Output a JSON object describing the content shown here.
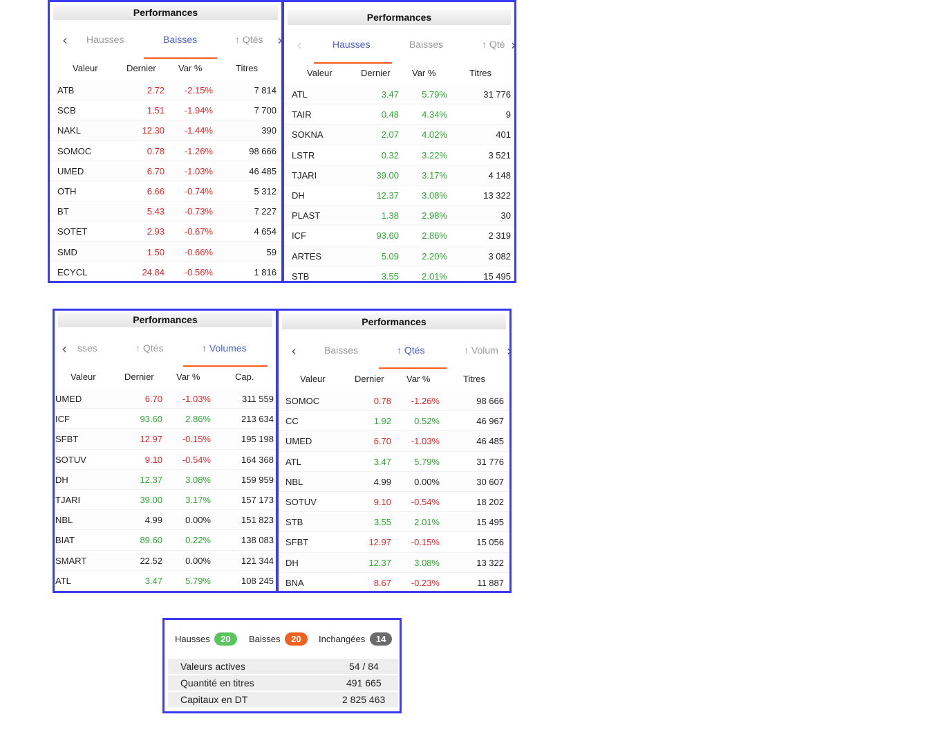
{
  "colors": {
    "frame": "#3b3bf0",
    "up": "#2ea831",
    "down": "#e02a2a",
    "tab_active": "#4a5fc8",
    "tab_underline": "#ff5a1f",
    "badge_up": "#5cc45e",
    "badge_down": "#f06222",
    "badge_flat": "#6b6b6b"
  },
  "panels": [
    {
      "title": "Performances",
      "tabs": [
        "Hausses",
        "Baisses",
        "↑ Qtés"
      ],
      "active_tab": 1,
      "columns": [
        "Valeur",
        "Dernier",
        "Var %",
        "Titres"
      ],
      "rows": [
        {
          "name": "ATB",
          "last": "2.72",
          "var": "-2.15%",
          "val": "7 814",
          "trend": "down"
        },
        {
          "name": "SCB",
          "last": "1.51",
          "var": "-1.94%",
          "val": "7 700",
          "trend": "down"
        },
        {
          "name": "NAKL",
          "last": "12.30",
          "var": "-1.44%",
          "val": "390",
          "trend": "down"
        },
        {
          "name": "SOMOC",
          "last": "0.78",
          "var": "-1.26%",
          "val": "98 666",
          "trend": "down"
        },
        {
          "name": "UMED",
          "last": "6.70",
          "var": "-1.03%",
          "val": "46 485",
          "trend": "down"
        },
        {
          "name": "OTH",
          "last": "6.66",
          "var": "-0.74%",
          "val": "5 312",
          "trend": "down"
        },
        {
          "name": "BT",
          "last": "5.43",
          "var": "-0.73%",
          "val": "7 227",
          "trend": "down"
        },
        {
          "name": "SOTET",
          "last": "2.93",
          "var": "-0.67%",
          "val": "4 654",
          "trend": "down"
        },
        {
          "name": "SMD",
          "last": "1.50",
          "var": "-0.66%",
          "val": "59",
          "trend": "down"
        },
        {
          "name": "ECYCL",
          "last": "24.84",
          "var": "-0.56%",
          "val": "1 816",
          "trend": "down"
        }
      ]
    },
    {
      "title": "Performances",
      "tabs": [
        "Hausses",
        "Baisses",
        "↑ Qté"
      ],
      "active_tab": 0,
      "columns": [
        "Valeur",
        "Dernier",
        "Var %",
        "Titres"
      ],
      "rows": [
        {
          "name": "ATL",
          "last": "3.47",
          "var": "5.79%",
          "val": "31 776",
          "trend": "up"
        },
        {
          "name": "TAIR",
          "last": "0.48",
          "var": "4.34%",
          "val": "9",
          "trend": "up"
        },
        {
          "name": "SOKNA",
          "last": "2.07",
          "var": "4.02%",
          "val": "401",
          "trend": "up"
        },
        {
          "name": "LSTR",
          "last": "0.32",
          "var": "3.22%",
          "val": "3 521",
          "trend": "up"
        },
        {
          "name": "TJARI",
          "last": "39.00",
          "var": "3.17%",
          "val": "4 148",
          "trend": "up"
        },
        {
          "name": "DH",
          "last": "12.37",
          "var": "3.08%",
          "val": "13 322",
          "trend": "up"
        },
        {
          "name": "PLAST",
          "last": "1.38",
          "var": "2.98%",
          "val": "30",
          "trend": "up"
        },
        {
          "name": "ICF",
          "last": "93.60",
          "var": "2.86%",
          "val": "2 319",
          "trend": "up"
        },
        {
          "name": "ARTES",
          "last": "5.09",
          "var": "2.20%",
          "val": "3 082",
          "trend": "up"
        },
        {
          "name": "STB",
          "last": "3.55",
          "var": "2.01%",
          "val": "15 495",
          "trend": "up"
        }
      ]
    },
    {
      "title": "Performances",
      "tabs": [
        "sses",
        "↑ Qtés",
        "↑ Volumes"
      ],
      "active_tab": 2,
      "columns": [
        "Valeur",
        "Dernier",
        "Var %",
        "Cap."
      ],
      "rows": [
        {
          "name": "UMED",
          "last": "6.70",
          "var": "-1.03%",
          "val": "311 559",
          "trend": "down"
        },
        {
          "name": "ICF",
          "last": "93.60",
          "var": "2.86%",
          "val": "213 634",
          "trend": "up"
        },
        {
          "name": "SFBT",
          "last": "12.97",
          "var": "-0.15%",
          "val": "195 198",
          "trend": "down"
        },
        {
          "name": "SOTUV",
          "last": "9.10",
          "var": "-0.54%",
          "val": "164 368",
          "trend": "down"
        },
        {
          "name": "DH",
          "last": "12.37",
          "var": "3.08%",
          "val": "159 959",
          "trend": "up"
        },
        {
          "name": "TJARI",
          "last": "39.00",
          "var": "3.17%",
          "val": "157 173",
          "trend": "up"
        },
        {
          "name": "NBL",
          "last": "4.99",
          "var": "0.00%",
          "val": "151 823",
          "trend": "flat"
        },
        {
          "name": "BIAT",
          "last": "89.60",
          "var": "0.22%",
          "val": "138 083",
          "trend": "up"
        },
        {
          "name": "SMART",
          "last": "22.52",
          "var": "0.00%",
          "val": "121 344",
          "trend": "flat"
        },
        {
          "name": "ATL",
          "last": "3.47",
          "var": "5.79%",
          "val": "108 245",
          "trend": "up"
        }
      ]
    },
    {
      "title": "Performances",
      "tabs": [
        "Baisses",
        "↑ Qtés",
        "↑ Volum"
      ],
      "active_tab": 1,
      "columns": [
        "Valeur",
        "Dernier",
        "Var %",
        "Titres"
      ],
      "rows": [
        {
          "name": "SOMOC",
          "last": "0.78",
          "var": "-1.26%",
          "val": "98 666",
          "trend": "down"
        },
        {
          "name": "CC",
          "last": "1.92",
          "var": "0.52%",
          "val": "46 967",
          "trend": "up"
        },
        {
          "name": "UMED",
          "last": "6.70",
          "var": "-1.03%",
          "val": "46 485",
          "trend": "down"
        },
        {
          "name": "ATL",
          "last": "3.47",
          "var": "5.79%",
          "val": "31 776",
          "trend": "up"
        },
        {
          "name": "NBL",
          "last": "4.99",
          "var": "0.00%",
          "val": "30 607",
          "trend": "flat"
        },
        {
          "name": "SOTUV",
          "last": "9.10",
          "var": "-0.54%",
          "val": "18 202",
          "trend": "down"
        },
        {
          "name": "STB",
          "last": "3.55",
          "var": "2.01%",
          "val": "15 495",
          "trend": "up"
        },
        {
          "name": "SFBT",
          "last": "12.97",
          "var": "-0.15%",
          "val": "15 056",
          "trend": "down"
        },
        {
          "name": "DH",
          "last": "12.37",
          "var": "3.08%",
          "val": "13 322",
          "trend": "up"
        },
        {
          "name": "BNA",
          "last": "8.67",
          "var": "-0.23%",
          "val": "11 887",
          "trend": "down"
        }
      ]
    }
  ],
  "summary": {
    "hausses_label": "Hausses",
    "hausses_count": "20",
    "baisses_label": "Baisses",
    "baisses_count": "20",
    "inchangees_label": "Inchangées",
    "inchangees_count": "14",
    "rows": [
      {
        "label": "Valeurs actives",
        "value": "54 / 84"
      },
      {
        "label": "Quantité en titres",
        "value": "491 665"
      },
      {
        "label": "Capitaux en DT",
        "value": "2 825 463"
      }
    ]
  }
}
